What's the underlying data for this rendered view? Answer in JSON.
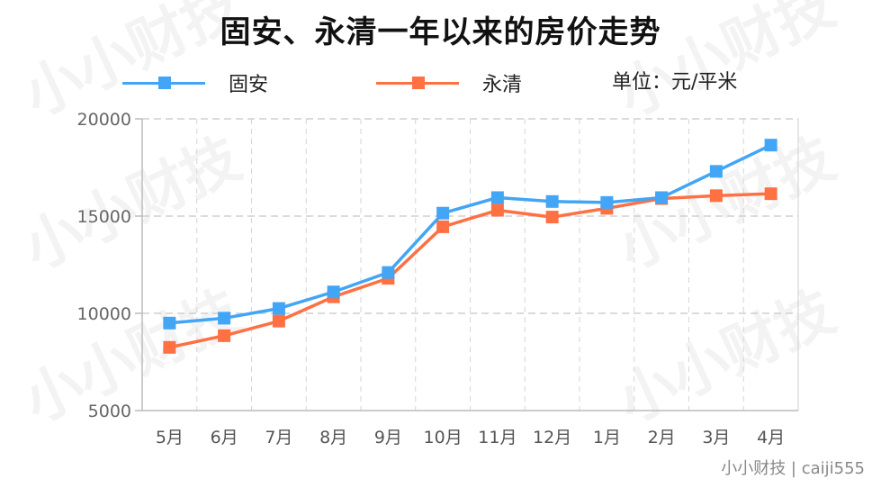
{
  "title": "固安、永清一年以来的房价走势",
  "legend": {
    "items": [
      {
        "name": "固安",
        "color": "#42a5f5"
      },
      {
        "name": "永清",
        "color": "#ff7043"
      }
    ],
    "unit": "单位：元/平米"
  },
  "credit": "小小财技 | caiji555",
  "watermark": "小小财技",
  "chart_data": {
    "type": "line",
    "title": "固安、永清一年以来的房价走势",
    "xlabel": "",
    "ylabel": "",
    "categories": [
      "5月",
      "6月",
      "7月",
      "8月",
      "9月",
      "10月",
      "11月",
      "12月",
      "1月",
      "2月",
      "3月",
      "4月"
    ],
    "series": [
      {
        "name": "固安",
        "color": "#42a5f5",
        "values": [
          9500,
          9750,
          10250,
          11100,
          12100,
          15150,
          15950,
          15750,
          15700,
          15950,
          17300,
          18650
        ]
      },
      {
        "name": "永清",
        "color": "#ff7043",
        "values": [
          8250,
          8850,
          9600,
          10850,
          11800,
          14450,
          15300,
          14950,
          15400,
          15900,
          16050,
          16150
        ]
      }
    ],
    "ylim": [
      5000,
      20000
    ],
    "yticks": [
      5000,
      10000,
      15000,
      20000
    ],
    "grid": true,
    "legend_position": "top"
  }
}
